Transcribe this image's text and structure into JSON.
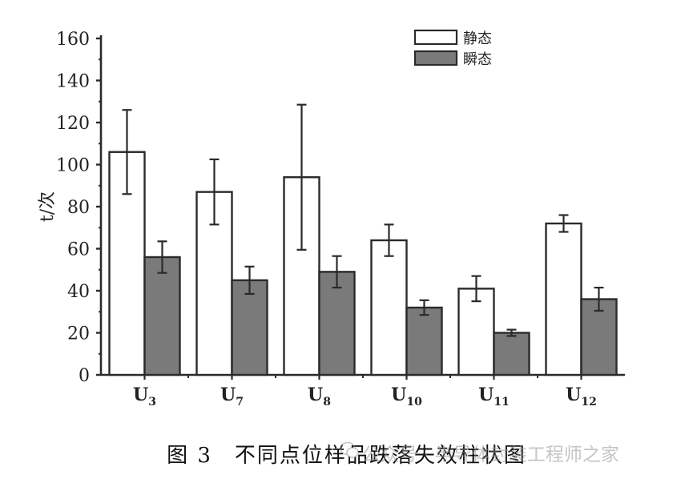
{
  "chart_data": {
    "type": "bar",
    "ylabel": "t/次",
    "ylim": [
      0,
      160
    ],
    "yticks": [
      0,
      20,
      40,
      60,
      80,
      100,
      120,
      140,
      160
    ],
    "categories": [
      {
        "base": "U",
        "sub": "3"
      },
      {
        "base": "U",
        "sub": "7"
      },
      {
        "base": "U",
        "sub": "8"
      },
      {
        "base": "U",
        "sub": "10"
      },
      {
        "base": "U",
        "sub": "11"
      },
      {
        "base": "U",
        "sub": "12"
      }
    ],
    "series": [
      {
        "name": "静态",
        "color": "#ffffff",
        "values": [
          106,
          87,
          94,
          64,
          41,
          72
        ],
        "errors": [
          20,
          15.5,
          34.5,
          7.5,
          6,
          4
        ]
      },
      {
        "name": "瞬态",
        "color": "#7a7a7a",
        "values": [
          56,
          45,
          49,
          32,
          20,
          36
        ],
        "errors": [
          7.5,
          6.5,
          7.5,
          3.5,
          1.5,
          5.5
        ]
      }
    ],
    "legend_position": "top-right",
    "grid": false
  },
  "caption": "图 3　不同点位样品跌落失效柱状图",
  "watermark": "公众号 · 半导体封装工程师之家"
}
